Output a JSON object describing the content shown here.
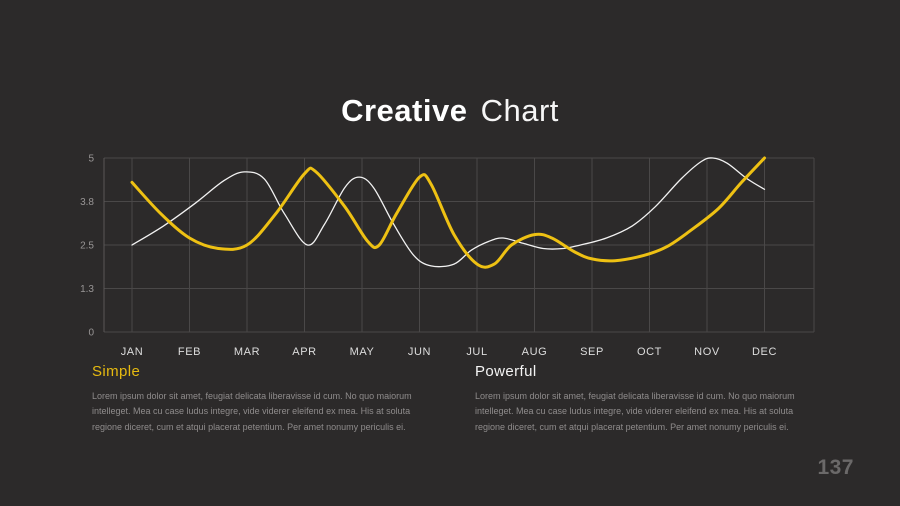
{
  "title": {
    "bold": "Creative",
    "light": "Chart"
  },
  "page_number": "137",
  "sections": [
    {
      "heading": "Simple",
      "body": "Lorem ipsum dolor sit amet, feugiat delicata liberavisse id cum. No quo maiorum intelleget. Mea cu case ludus integre, vide viderer eleifend ex mea. His at soluta regione diceret, cum et atqui placerat petentium. Per amet nonumy periculis ei."
    },
    {
      "heading": "Powerful",
      "body": "Lorem ipsum dolor sit amet, feugiat delicata liberavisse id cum. No quo maiorum intelleget. Mea cu case ludus integre, vide viderer eleifend ex mea. His at soluta regione diceret, cum et atqui placerat petentium. Per amet nonumy periculis ei."
    }
  ],
  "chart_data": {
    "type": "line",
    "title": "Creative Chart",
    "categories": [
      "JAN",
      "FEB",
      "MAR",
      "APR",
      "MAY",
      "JUN",
      "JUL",
      "AUG",
      "SEP",
      "OCT",
      "NOV",
      "DEC"
    ],
    "y_ticks": [
      "0",
      "1.3",
      "2.5",
      "3.8",
      "5"
    ],
    "ylim": [
      0,
      5
    ],
    "grid": true,
    "legend": "none",
    "colors": {
      "accent_yellow": "#eec113",
      "line_white": "#f2f2f2",
      "grid": "#4a4848",
      "axis_text": "#989595",
      "month_text": "#dddddd"
    },
    "series": [
      {
        "name": "white-line",
        "color": "#f2f2f2",
        "stroke_width": 1.3,
        "points": [
          [
            0,
            2.5
          ],
          [
            0.55,
            3.05
          ],
          [
            1.1,
            3.7
          ],
          [
            1.6,
            4.35
          ],
          [
            1.95,
            4.6
          ],
          [
            2.3,
            4.4
          ],
          [
            2.65,
            3.4
          ],
          [
            3.05,
            2.5
          ],
          [
            3.35,
            3.1
          ],
          [
            3.7,
            4.15
          ],
          [
            3.95,
            4.45
          ],
          [
            4.2,
            4.15
          ],
          [
            4.55,
            3.1
          ],
          [
            4.9,
            2.2
          ],
          [
            5.2,
            1.9
          ],
          [
            5.6,
            1.95
          ],
          [
            5.9,
            2.35
          ],
          [
            6.2,
            2.6
          ],
          [
            6.45,
            2.7
          ],
          [
            6.8,
            2.55
          ],
          [
            7.15,
            2.4
          ],
          [
            7.5,
            2.4
          ],
          [
            7.8,
            2.5
          ],
          [
            8.25,
            2.7
          ],
          [
            8.7,
            3.05
          ],
          [
            9.1,
            3.6
          ],
          [
            9.55,
            4.4
          ],
          [
            9.9,
            4.9
          ],
          [
            10.1,
            5.0
          ],
          [
            10.35,
            4.85
          ],
          [
            10.7,
            4.4
          ],
          [
            11,
            4.1
          ]
        ]
      },
      {
        "name": "yellow-line",
        "color": "#eec113",
        "stroke_width": 3,
        "points": [
          [
            0,
            4.3
          ],
          [
            0.5,
            3.4
          ],
          [
            1,
            2.7
          ],
          [
            1.5,
            2.4
          ],
          [
            2,
            2.5
          ],
          [
            2.5,
            3.4
          ],
          [
            3,
            4.55
          ],
          [
            3.2,
            4.6
          ],
          [
            3.7,
            3.6
          ],
          [
            4.1,
            2.6
          ],
          [
            4.3,
            2.5
          ],
          [
            4.6,
            3.4
          ],
          [
            5,
            4.45
          ],
          [
            5.2,
            4.25
          ],
          [
            5.6,
            2.8
          ],
          [
            6,
            1.95
          ],
          [
            6.3,
            1.95
          ],
          [
            6.6,
            2.5
          ],
          [
            7,
            2.8
          ],
          [
            7.3,
            2.7
          ],
          [
            7.7,
            2.3
          ],
          [
            8,
            2.1
          ],
          [
            8.4,
            2.05
          ],
          [
            8.9,
            2.2
          ],
          [
            9.3,
            2.45
          ],
          [
            9.7,
            2.9
          ],
          [
            10.2,
            3.55
          ],
          [
            10.6,
            4.3
          ],
          [
            11,
            5.0
          ]
        ]
      }
    ]
  }
}
